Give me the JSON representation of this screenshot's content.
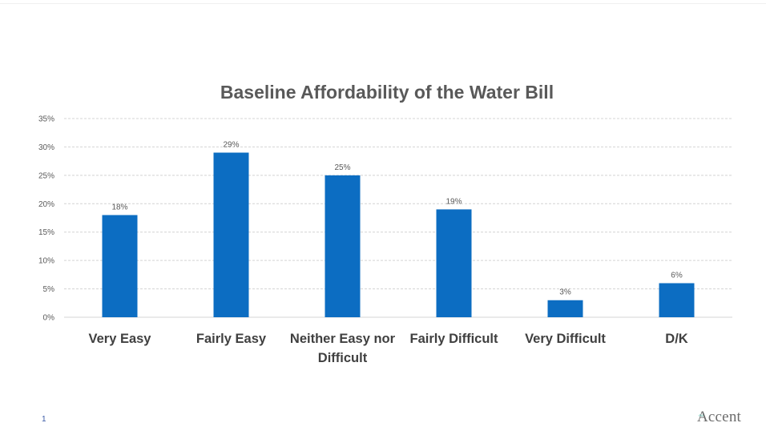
{
  "slide": {
    "page_number": "1",
    "logo_text": "Accent",
    "colors": {
      "bar": "#0c6dc2",
      "grid": "#d4d4d4",
      "axis_text": "#595959",
      "category_text": "#404040"
    }
  },
  "chart_data": {
    "type": "bar",
    "title": "Baseline Affordability of the Water Bill",
    "categories": [
      [
        "Very Easy"
      ],
      [
        "Fairly Easy"
      ],
      [
        "Neither Easy nor",
        "Difficult"
      ],
      [
        "Fairly Difficult"
      ],
      [
        "Very Difficult"
      ],
      [
        "D/K"
      ]
    ],
    "values": [
      18,
      29,
      25,
      19,
      3,
      6
    ],
    "data_labels": [
      "18%",
      "29%",
      "25%",
      "19%",
      "3%",
      "6%"
    ],
    "ylim": [
      0,
      35
    ],
    "yticks": [
      0,
      5,
      10,
      15,
      20,
      25,
      30,
      35
    ],
    "ytick_labels": [
      "0%",
      "5%",
      "10%",
      "15%",
      "20%",
      "25%",
      "30%",
      "35%"
    ],
    "grid": true,
    "legend": "none"
  }
}
